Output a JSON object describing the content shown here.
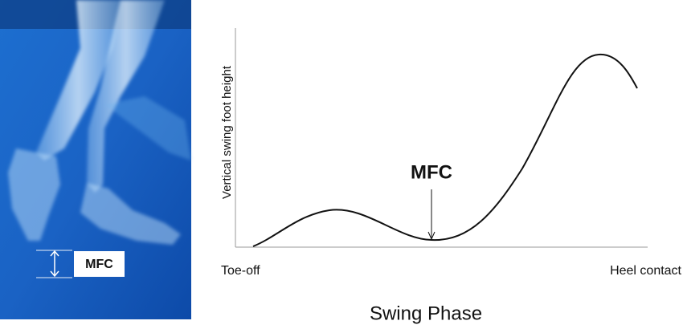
{
  "illustration": {
    "label": "MFC"
  },
  "graph": {
    "y_label": "Vertical swing foot height",
    "annotation": "MFC",
    "x_start": "Toe-off",
    "x_end": "Heel contact",
    "x_label": "Swing Phase"
  }
}
